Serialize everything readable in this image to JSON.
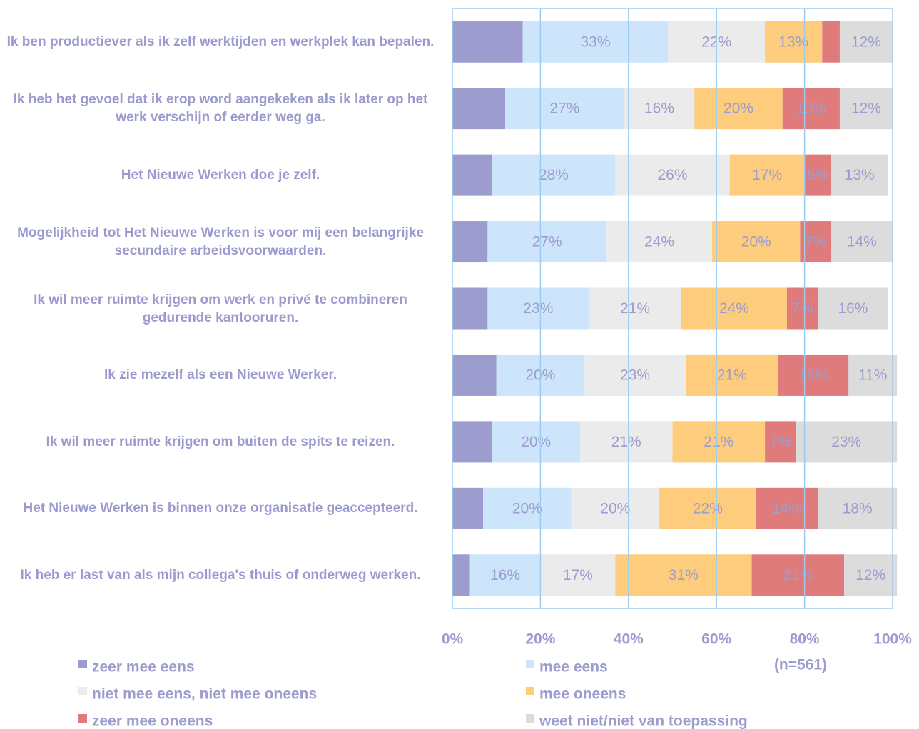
{
  "chart_data": {
    "type": "stacked_barh",
    "categories": [
      "Ik ben productiever  als ik zelf werktijden en werkplek kan bepalen.",
      "Ik heb het gevoel dat ik erop word aangekeken als ik later op het werk verschijn of eerder weg ga.",
      "Het Nieuwe  Werken doe  je zelf.",
      "Mogelijkheid tot Het Nieuwe Werken is voor mij een belangrijke secundaire arbeidsvoorwaarden.",
      "Ik wil meer ruimte krijgen om werk en privé te combineren gedurende  kantooruren.",
      "Ik zie mezelf als een Nieuwe  Werker.",
      "Ik wil meer ruimte krijgen om buiten de spits te reizen.",
      "Het Nieuwe  Werken is binnen onze organisatie geaccepteerd.",
      "Ik heb er last van als mijn collega's thuis of onderweg werken."
    ],
    "series": [
      {
        "name": "zeer mee  eens",
        "color": "#9c9ccf",
        "values": [
          16,
          12,
          9,
          8,
          8,
          10,
          9,
          7,
          4
        ],
        "value_labels": [
          "16%",
          "12%",
          "9%",
          "8%",
          "8%",
          "10%",
          "9%",
          "7%",
          null
        ]
      },
      {
        "name": "mee eens",
        "color": "#cce5fb",
        "values": [
          33,
          27,
          28,
          27,
          23,
          20,
          20,
          20,
          16
        ],
        "value_labels": [
          "33%",
          "27%",
          "28%",
          "27%",
          "23%",
          "20%",
          "20%",
          "20%",
          "16%"
        ]
      },
      {
        "name": "niet mee  eens,  niet mee  oneens",
        "color": "#ebebeb",
        "values": [
          22,
          16,
          26,
          24,
          21,
          23,
          21,
          20,
          17
        ],
        "value_labels": [
          "22%",
          "16%",
          "26%",
          "24%",
          "21%",
          "23%",
          "21%",
          "20%",
          "17%"
        ]
      },
      {
        "name": "mee oneens",
        "color": "#fdcc7c",
        "values": [
          13,
          20,
          17,
          20,
          24,
          21,
          21,
          22,
          31
        ],
        "value_labels": [
          "13%",
          "20%",
          "17%",
          "20%",
          "24%",
          "21%",
          "21%",
          "22%",
          "31%"
        ]
      },
      {
        "name": "zeer mee  oneens",
        "color": "#e07b7b",
        "values": [
          4,
          13,
          6,
          7,
          7,
          16,
          7,
          14,
          21
        ],
        "value_labels": [
          null,
          "13%",
          "6%",
          "7%",
          "7%",
          "16%",
          "7%",
          "14%",
          "21%"
        ]
      },
      {
        "name": "weet niet/niet van toepassing",
        "color": "#dcdcdc",
        "values": [
          12,
          12,
          13,
          14,
          16,
          11,
          23,
          18,
          12
        ],
        "value_labels": [
          "12%",
          "12%",
          "13%",
          "14%",
          "16%",
          "11%",
          "23%",
          "18%",
          "12%"
        ]
      }
    ],
    "xlim": [
      0,
      100
    ],
    "xticks": [
      {
        "value": 0,
        "label": "0%"
      },
      {
        "value": 20,
        "label": "20%"
      },
      {
        "value": 40,
        "label": "40%"
      },
      {
        "value": 60,
        "label": "60%"
      },
      {
        "value": 80,
        "label": "80%"
      },
      {
        "value": 100,
        "label": "100%"
      }
    ],
    "annotation": "(n=561)",
    "grid": true,
    "legend": "bottom"
  }
}
